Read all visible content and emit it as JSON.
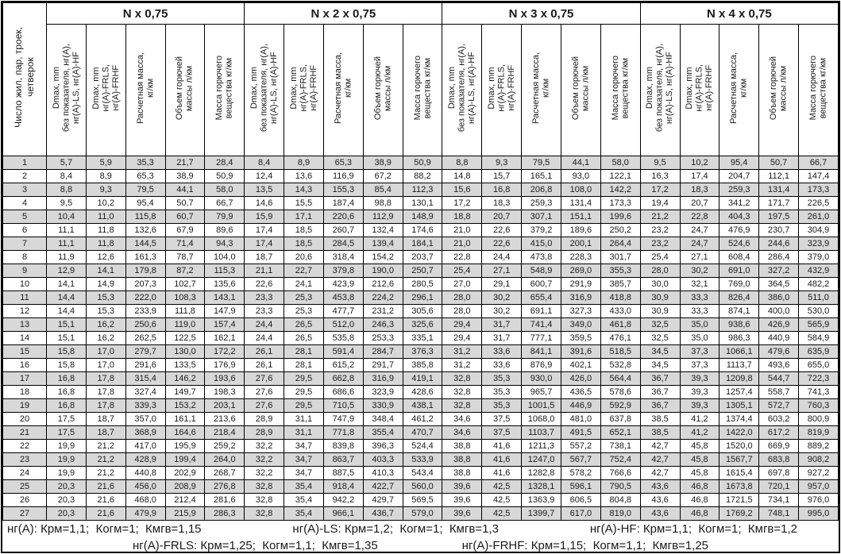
{
  "table": {
    "corner_header": "Число жил, пар, троек,\nчетверок",
    "groups": [
      "N x 0,75",
      "N x 2 x 0,75",
      "N x 3 x 0,75",
      "N x 4 x 0,75"
    ],
    "sub_headers": [
      [
        "Dmax, mm",
        "без показателя, нг(А),",
        "нг(А)-LS, нг(А)-HF"
      ],
      [
        "Dmax, mm",
        "нг(А)-FRLS,",
        "нг(А)-FRHF"
      ],
      [
        "Расчетная масса,",
        "кг/км"
      ],
      [
        "Объем горючей",
        "массы л/км"
      ],
      [
        "Масса горючего",
        "вещества кг/км"
      ]
    ],
    "rows": [
      {
        "n": "1",
        "values": [
          "5,7",
          "5,9",
          "35,3",
          "21,7",
          "28,4",
          "8,4",
          "8,9",
          "65,3",
          "38,9",
          "50,9",
          "8,8",
          "9,3",
          "79,5",
          "44,1",
          "58,0",
          "9,5",
          "10,2",
          "95,4",
          "50,7",
          "66,7"
        ]
      },
      {
        "n": "2",
        "values": [
          "8,4",
          "8,9",
          "65,3",
          "38,9",
          "50,9",
          "12,4",
          "13,6",
          "116,9",
          "67,2",
          "88,2",
          "14,8",
          "15,7",
          "165,1",
          "93,0",
          "122,1",
          "16,3",
          "17,4",
          "204,7",
          "112,1",
          "147,4"
        ]
      },
      {
        "n": "3",
        "values": [
          "8,8",
          "9,3",
          "79,5",
          "44,1",
          "58,0",
          "13,5",
          "14,3",
          "155,3",
          "85,4",
          "112,3",
          "15,6",
          "16,8",
          "206,8",
          "108,0",
          "142,2",
          "17,2",
          "18,3",
          "259,3",
          "131,4",
          "173,3"
        ]
      },
      {
        "n": "4",
        "values": [
          "9,5",
          "10,2",
          "95,4",
          "50,7",
          "66,7",
          "14,6",
          "15,5",
          "187,4",
          "98,8",
          "130,1",
          "17,2",
          "18,3",
          "259,3",
          "131,4",
          "173,3",
          "19,4",
          "20,7",
          "341,2",
          "171,7",
          "226,5"
        ]
      },
      {
        "n": "5",
        "values": [
          "10,4",
          "11,0",
          "115,8",
          "60,7",
          "79,9",
          "15,9",
          "17,1",
          "220,6",
          "112,9",
          "148,9",
          "18,8",
          "20,7",
          "307,1",
          "151,1",
          "199,6",
          "21,2",
          "22,8",
          "404,3",
          "197,5",
          "261,0"
        ]
      },
      {
        "n": "6",
        "values": [
          "11,1",
          "11,8",
          "132,6",
          "67,9",
          "89,6",
          "17,4",
          "18,5",
          "260,7",
          "132,4",
          "174,6",
          "21,0",
          "22,6",
          "379,2",
          "189,6",
          "250,2",
          "23,2",
          "24,7",
          "476,9",
          "230,7",
          "304,9"
        ]
      },
      {
        "n": "7",
        "values": [
          "11,1",
          "11,8",
          "144,5",
          "71,4",
          "94,3",
          "17,4",
          "18,5",
          "284,5",
          "139,4",
          "184,1",
          "21,0",
          "22,6",
          "415,0",
          "200,1",
          "264,4",
          "23,2",
          "24,7",
          "524,6",
          "244,6",
          "323,9"
        ]
      },
      {
        "n": "8",
        "values": [
          "11,9",
          "12,6",
          "161,3",
          "78,7",
          "104,0",
          "18,7",
          "20,6",
          "318,4",
          "154,2",
          "203,7",
          "22,8",
          "24,4",
          "473,8",
          "228,3",
          "301,7",
          "25,4",
          "27,1",
          "608,4",
          "286,4",
          "379,0"
        ]
      },
      {
        "n": "9",
        "values": [
          "12,9",
          "14,1",
          "179,8",
          "87,2",
          "115,3",
          "21,1",
          "22,7",
          "379,8",
          "190,0",
          "250,7",
          "25,4",
          "27,1",
          "548,9",
          "269,0",
          "355,3",
          "28,0",
          "30,2",
          "691,0",
          "327,2",
          "432,9"
        ]
      },
      {
        "n": "10",
        "values": [
          "14,1",
          "14,9",
          "207,3",
          "102,7",
          "135,6",
          "22,6",
          "24,1",
          "423,9",
          "212,6",
          "280,5",
          "27,0",
          "29,1",
          "600,7",
          "291,9",
          "385,7",
          "30,0",
          "32,1",
          "769,0",
          "364,5",
          "482,2"
        ]
      },
      {
        "n": "11",
        "values": [
          "14,4",
          "15,3",
          "222,0",
          "108,3",
          "143,1",
          "23,3",
          "25,3",
          "453,8",
          "224,2",
          "296,1",
          "28,0",
          "30,2",
          "655,4",
          "316,9",
          "418,8",
          "30,9",
          "33,3",
          "826,4",
          "386,0",
          "511,0"
        ]
      },
      {
        "n": "12",
        "values": [
          "14,4",
          "15,3",
          "233,9",
          "111,8",
          "147,9",
          "23,3",
          "25,3",
          "477,7",
          "231,2",
          "305,6",
          "28,0",
          "30,2",
          "691,1",
          "327,3",
          "433,0",
          "30,9",
          "33,3",
          "874,1",
          "400,0",
          "530,0"
        ]
      },
      {
        "n": "13",
        "values": [
          "15,1",
          "16,2",
          "250,6",
          "119,0",
          "157,4",
          "24,4",
          "26,5",
          "512,0",
          "246,3",
          "325,6",
          "29,4",
          "31,7",
          "741,4",
          "349,0",
          "461,8",
          "32,5",
          "35,0",
          "938,6",
          "426,9",
          "565,9"
        ]
      },
      {
        "n": "14",
        "values": [
          "15,1",
          "16,2",
          "262,5",
          "122,5",
          "162,1",
          "24,4",
          "26,5",
          "535,8",
          "253,3",
          "335,1",
          "29,4",
          "31,7",
          "777,1",
          "359,5",
          "476,1",
          "32,5",
          "35,0",
          "986,3",
          "440,9",
          "584,9"
        ]
      },
      {
        "n": "15",
        "values": [
          "15,8",
          "17,0",
          "279,7",
          "130,0",
          "172,2",
          "26,1",
          "28,1",
          "591,4",
          "284,7",
          "376,3",
          "31,2",
          "33,6",
          "841,1",
          "391,6",
          "518,5",
          "34,5",
          "37,3",
          "1066,1",
          "479,6",
          "635,9"
        ]
      },
      {
        "n": "16",
        "values": [
          "15,8",
          "17,0",
          "291,6",
          "133,5",
          "176,9",
          "26,1",
          "28,1",
          "615,2",
          "291,7",
          "385,8",
          "31,2",
          "33,6",
          "876,9",
          "402,1",
          "532,8",
          "34,5",
          "37,3",
          "1113,7",
          "493,6",
          "655,0"
        ]
      },
      {
        "n": "17",
        "values": [
          "16,8",
          "17,8",
          "315,4",
          "146,2",
          "193,6",
          "27,6",
          "29,5",
          "662,8",
          "316,9",
          "419,1",
          "32,8",
          "35,3",
          "930,0",
          "426,0",
          "564,4",
          "36,7",
          "39,3",
          "1209,8",
          "544,7",
          "722,3"
        ]
      },
      {
        "n": "18",
        "values": [
          "16,8",
          "17,8",
          "327,4",
          "149,7",
          "198,3",
          "27,6",
          "29,5",
          "686,6",
          "323,9",
          "428,6",
          "32,8",
          "35,3",
          "965,7",
          "436,5",
          "578,6",
          "36,7",
          "39,3",
          "1257,4",
          "558,7",
          "741,3"
        ]
      },
      {
        "n": "19",
        "values": [
          "16,8",
          "17,8",
          "339,3",
          "153,2",
          "203,1",
          "27,6",
          "29,5",
          "710,5",
          "330,9",
          "438,1",
          "32,8",
          "35,3",
          "1001,5",
          "446,9",
          "592,9",
          "36,7",
          "39,3",
          "1305,1",
          "572,7",
          "760,3"
        ]
      },
      {
        "n": "20",
        "values": [
          "17,5",
          "18,7",
          "357,0",
          "161,1",
          "213,6",
          "28,9",
          "31,1",
          "747,9",
          "348,4",
          "461,2",
          "34,6",
          "37,5",
          "1068,0",
          "481,0",
          "637,8",
          "38,5",
          "41,2",
          "1374,4",
          "603,2",
          "800,9"
        ]
      },
      {
        "n": "21",
        "values": [
          "17,5",
          "18,7",
          "368,9",
          "164,6",
          "218,4",
          "28,9",
          "31,1",
          "771,8",
          "355,4",
          "470,7",
          "34,6",
          "37,5",
          "1103,7",
          "491,5",
          "652,1",
          "38,5",
          "41,2",
          "1422,0",
          "617,2",
          "819,9"
        ]
      },
      {
        "n": "22",
        "values": [
          "19,9",
          "21,2",
          "417,0",
          "195,9",
          "259,2",
          "32,2",
          "34,7",
          "839,8",
          "396,3",
          "524,4",
          "38,8",
          "41,6",
          "1211,3",
          "557,2",
          "738,1",
          "42,7",
          "45,8",
          "1520,0",
          "669,9",
          "889,2"
        ]
      },
      {
        "n": "23",
        "values": [
          "19,9",
          "21,2",
          "428,9",
          "199,4",
          "264,0",
          "32,2",
          "34,7",
          "863,7",
          "403,3",
          "533,9",
          "38,8",
          "41,6",
          "1247,0",
          "567,7",
          "752,4",
          "42,7",
          "45,8",
          "1567,7",
          "683,8",
          "908,2"
        ]
      },
      {
        "n": "24",
        "values": [
          "19,9",
          "21,2",
          "440,8",
          "202,9",
          "268,7",
          "32,2",
          "34,7",
          "887,5",
          "410,3",
          "543,4",
          "38,8",
          "41,6",
          "1282,8",
          "578,2",
          "766,6",
          "42,7",
          "45,8",
          "1615,4",
          "697,8",
          "927,2"
        ]
      },
      {
        "n": "25",
        "values": [
          "20,3",
          "21,6",
          "456,0",
          "208,9",
          "276,8",
          "32,8",
          "35,4",
          "918,4",
          "422,7",
          "560,0",
          "39,6",
          "42,5",
          "1328,1",
          "596,1",
          "790,5",
          "43,6",
          "46,8",
          "1673,8",
          "720,1",
          "957,0"
        ]
      },
      {
        "n": "26",
        "values": [
          "20,3",
          "21,6",
          "468,0",
          "212,4",
          "281,6",
          "32,8",
          "35,4",
          "942,2",
          "429,7",
          "569,5",
          "39,6",
          "42,5",
          "1363,9",
          "606,5",
          "804,8",
          "43,6",
          "46,8",
          "1721,5",
          "734,1",
          "976,0"
        ]
      },
      {
        "n": "27",
        "values": [
          "20,3",
          "21,6",
          "479,9",
          "215,9",
          "286,3",
          "32,8",
          "35,4",
          "966,1",
          "436,7",
          "579,0",
          "39,6",
          "42,5",
          "1399,7",
          "617,0",
          "819,0",
          "43,6",
          "46,8",
          "1769,2",
          "748,1",
          "995,0"
        ]
      }
    ]
  },
  "footnotes": {
    "line1": [
      "нг(А): Крм=1,1;  Когм=1;  Кмгв=1,15",
      "нг(А)-LS: Крм=1,2;  Когм=1;  Кмгв=1,3",
      "нг(А)-HF: Крм=1,1;  Когм=1;  Кмгв=1,2"
    ],
    "line2": [
      "нг(А)-FRLS: Крм=1,25;  Когм=1,1;  Кмгв=1,35",
      "нг(А)-FRHF: Крм=1,15;  Когм=1,1;  Кмгв=1,25"
    ]
  },
  "colors": {
    "stripe": "#d8d8d8",
    "border": "#000000"
  }
}
